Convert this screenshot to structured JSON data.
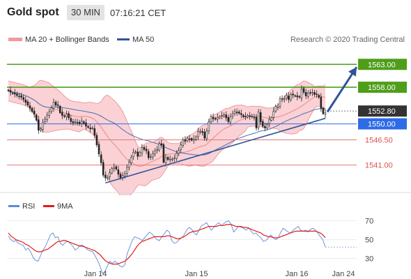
{
  "header": {
    "title": "Gold spot",
    "timeframe": "30 MIN",
    "time": "07:16:21 CET"
  },
  "legend": {
    "bb_label": "MA 20 + Bollinger Bands",
    "ma50_label": "MA 50",
    "copyright": "Research © 2020 Trading Central"
  },
  "colors": {
    "up_candle": "#ffffff",
    "candle_stroke": "#222222",
    "down_candle": "#222222",
    "bollinger_band": "#f9c9ce",
    "ma20": "#e98a8a",
    "ma50": "#4a6fb0",
    "trendline": "#2f5597",
    "resistance": "#4f9e1a",
    "support": "#e07a7a",
    "pivot": "#2e6be6",
    "last_price": "#333333",
    "rsi": "#5b8bd6",
    "rsi_ma": "#e11b1b"
  },
  "chart_data": [
    {
      "type": "candlestick",
      "ylim": [
        1535,
        1567
      ],
      "x_tick_labels": [
        "Jan 14",
        "Jan 15",
        "Jan 16",
        "Jan 24"
      ],
      "levels": [
        {
          "label": "1563.00",
          "value": 1563.0,
          "kind": "resistance"
        },
        {
          "label": "1558.00",
          "value": 1558.0,
          "kind": "resistance"
        },
        {
          "label": "1550.00",
          "value": 1550.0,
          "kind": "pivot"
        },
        {
          "label": "1546.50",
          "value": 1546.5,
          "kind": "support"
        },
        {
          "label": "1541.00",
          "value": 1541.0,
          "kind": "support"
        }
      ],
      "last_price": {
        "label": "1552.80",
        "value": 1552.8
      },
      "close_prices": [
        1557.2,
        1556.9,
        1556.7,
        1556.5,
        1556.2,
        1556.0,
        1555.8,
        1555.3,
        1554.7,
        1554.1,
        1553.4,
        1552.7,
        1552.1,
        1550.8,
        1548.6,
        1548.9,
        1550.3,
        1551.0,
        1551.9,
        1552.6,
        1553.5,
        1554.7,
        1554.1,
        1554.0,
        1552.4,
        1551.8,
        1551.6,
        1552.1,
        1551.3,
        1550.5,
        1550.2,
        1550.5,
        1550.3,
        1550.0,
        1550.6,
        1550.1,
        1549.5,
        1549.2,
        1548.9,
        1549.1,
        1547.5,
        1545.4,
        1543.4,
        1541.5,
        1538.8,
        1538.2,
        1538.3,
        1539.3,
        1540.3,
        1540.5,
        1540.1,
        1539.0,
        1538.2,
        1538.7,
        1539.1,
        1540.5,
        1541.6,
        1542.7,
        1543.8,
        1543.9,
        1542.9,
        1543.8,
        1544.8,
        1544.4,
        1544.1,
        1542.6,
        1542.8,
        1543.5,
        1544.1,
        1544.4,
        1545.7,
        1545.4,
        1541.6,
        1542.6,
        1542.2,
        1542.3,
        1542.3,
        1542.5,
        1543.6,
        1544.2,
        1545.4,
        1546.5,
        1546.2,
        1546.9,
        1546.7,
        1546.4,
        1546.7,
        1547.1,
        1548.3,
        1548.4,
        1548.1,
        1546.9,
        1548.4,
        1550.4,
        1551.6,
        1551.1,
        1551.0,
        1551.4,
        1551.6,
        1551.8,
        1552.0,
        1551.3,
        1550.5,
        1551.6,
        1552.2,
        1552.7,
        1552.5,
        1552.3,
        1552.0,
        1551.5,
        1551.6,
        1551.8,
        1551.6,
        1551.6,
        1551.4,
        1549.1,
        1552.6,
        1550.4,
        1549.5,
        1549.1,
        1549.9,
        1550.9,
        1551.4,
        1552.7,
        1553.8,
        1553.7,
        1555.5,
        1555.4,
        1555.5,
        1556.2,
        1555.3,
        1556.4,
        1556.3,
        1556.1,
        1555.9,
        1555.8,
        1557.6,
        1556.9,
        1556.1,
        1556.7,
        1556.8,
        1556.9,
        1556.4,
        1556.4,
        1555.8,
        1553.4,
        1552.2,
        1552.4
      ]
    },
    {
      "type": "line",
      "title": "RSI",
      "ylim": [
        20,
        80
      ],
      "y_ticks": [
        70,
        50,
        30
      ],
      "y_tick_labels": [
        "70",
        "50",
        "30"
      ],
      "series": [
        {
          "name": "RSI",
          "color": "#5b8bd6",
          "values": [
            54,
            50,
            48,
            49,
            46,
            45,
            44,
            39,
            41,
            37,
            31,
            28,
            27,
            33,
            39,
            43,
            49,
            55,
            57,
            52,
            53,
            46,
            44,
            47,
            48,
            46,
            43,
            39,
            41,
            44,
            44,
            42,
            39,
            38,
            37,
            33,
            28,
            22,
            14,
            16,
            22,
            27,
            25,
            27,
            25,
            22,
            21,
            23,
            35,
            42,
            49,
            53,
            52,
            51,
            49,
            52,
            55,
            58,
            56,
            53,
            50,
            49,
            53,
            56,
            60,
            58,
            49,
            46,
            47,
            50,
            52,
            55,
            60,
            63,
            61,
            57,
            55,
            60,
            65,
            66,
            68,
            64,
            60,
            63,
            66,
            68,
            65,
            67,
            69,
            70,
            66,
            58,
            61,
            64,
            63,
            62,
            60,
            63,
            59,
            56,
            57,
            54,
            52,
            48,
            49,
            52,
            55,
            52,
            50,
            52,
            58,
            62,
            60,
            58,
            57,
            60,
            62,
            64,
            60,
            59,
            60,
            58,
            61,
            62,
            60,
            57,
            53,
            50,
            42
          ]
        },
        {
          "name": "9MA",
          "color": "#e11b1b",
          "values": [
            57,
            54,
            52,
            50,
            49,
            48,
            47,
            45,
            44,
            42,
            40,
            38,
            37,
            37,
            38,
            39,
            40,
            42,
            44,
            46,
            48,
            48,
            49,
            49,
            48,
            47,
            46,
            45,
            44,
            43,
            43,
            42,
            41,
            40,
            39,
            38,
            36,
            34,
            31,
            28,
            26,
            25,
            24,
            24,
            24,
            25,
            26,
            27,
            29,
            32,
            35,
            39,
            43,
            46,
            48,
            49,
            50,
            51,
            52,
            53,
            53,
            53,
            53,
            53,
            54,
            54,
            53,
            52,
            51,
            51,
            52,
            53,
            55,
            57,
            58,
            59,
            59,
            60,
            61,
            62,
            63,
            64,
            64,
            64,
            64,
            65,
            65,
            65,
            66,
            66,
            66,
            65,
            64,
            64,
            64,
            63,
            63,
            62,
            61,
            60,
            59,
            58,
            57,
            55,
            54,
            53,
            53,
            52,
            52,
            52,
            53,
            54,
            55,
            56,
            57,
            58,
            59,
            59,
            59,
            59,
            59,
            59,
            59,
            59,
            59,
            58,
            57,
            55,
            52
          ]
        }
      ]
    }
  ]
}
